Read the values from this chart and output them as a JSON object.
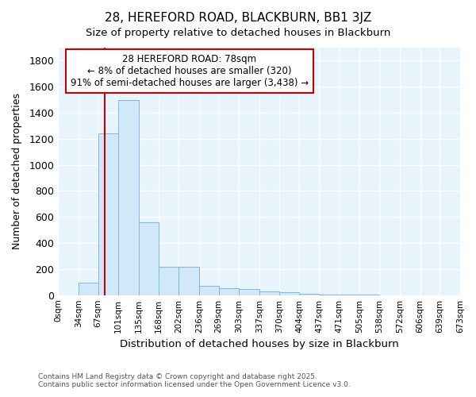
{
  "title": "28, HEREFORD ROAD, BLACKBURN, BB1 3JZ",
  "subtitle": "Size of property relative to detached houses in Blackburn",
  "xlabel": "Distribution of detached houses by size in Blackburn",
  "ylabel": "Number of detached properties",
  "footnote1": "Contains HM Land Registry data © Crown copyright and database right 2025.",
  "footnote2": "Contains public sector information licensed under the Open Government Licence v3.0.",
  "property_size": 78,
  "annotation_title": "28 HEREFORD ROAD: 78sqm",
  "annotation_line1": "← 8% of detached houses are smaller (320)",
  "annotation_line2": "91% of semi-detached houses are larger (3,438) →",
  "bar_color": "#d0e8f8",
  "bar_edge_color": "#7ab8e8",
  "vline_color": "#cc0000",
  "fig_background_color": "#ffffff",
  "plot_background_color": "#e8f4fc",
  "grid_color": "#ffffff",
  "bin_edges": [
    0,
    34,
    67,
    101,
    135,
    168,
    202,
    236,
    269,
    303,
    337,
    370,
    404,
    437,
    471,
    505,
    538,
    572,
    606,
    639,
    673
  ],
  "bin_heights": [
    0,
    95,
    1240,
    1500,
    560,
    215,
    215,
    70,
    50,
    45,
    30,
    25,
    10,
    5,
    3,
    2,
    1,
    1,
    0,
    0
  ],
  "ylim": [
    0,
    1900
  ],
  "xlim": [
    0,
    673
  ],
  "yticks": [
    0,
    200,
    400,
    600,
    800,
    1000,
    1200,
    1400,
    1600,
    1800
  ],
  "tick_labels": [
    "0sqm",
    "34sqm",
    "67sqm",
    "101sqm",
    "135sqm",
    "168sqm",
    "202sqm",
    "236sqm",
    "269sqm",
    "303sqm",
    "337sqm",
    "370sqm",
    "404sqm",
    "437sqm",
    "471sqm",
    "505sqm",
    "538sqm",
    "572sqm",
    "606sqm",
    "639sqm",
    "673sqm"
  ]
}
